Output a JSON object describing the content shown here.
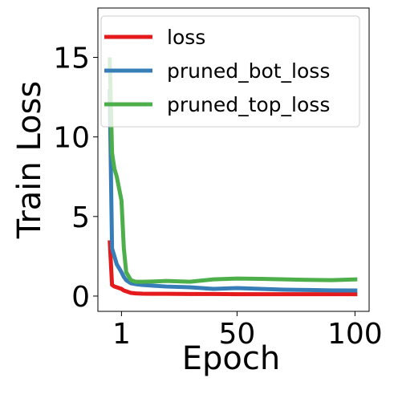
{
  "chart_data": {
    "type": "line",
    "x_label": "Epoch",
    "y_label": "Train Loss",
    "x": [
      -4,
      -3,
      -2,
      -1,
      1,
      2,
      3,
      5,
      7,
      10,
      15,
      20,
      30,
      40,
      50,
      60,
      70,
      80,
      90,
      101
    ],
    "series": [
      {
        "name": "loss",
        "color": "#e41a1c",
        "values": [
          3.5,
          0.7,
          0.6,
          0.55,
          0.45,
          0.35,
          0.3,
          0.2,
          0.17,
          0.15,
          0.14,
          0.14,
          0.13,
          0.13,
          0.12,
          0.12,
          0.12,
          0.12,
          0.12,
          0.12
        ]
      },
      {
        "name": "pruned_bot_loss",
        "color": "#377eb8",
        "values": [
          13,
          3,
          2.5,
          2,
          1.5,
          1.2,
          1.0,
          0.8,
          0.75,
          0.7,
          0.65,
          0.6,
          0.55,
          0.45,
          0.5,
          0.45,
          0.4,
          0.38,
          0.36,
          0.35
        ]
      },
      {
        "name": "pruned_top_loss",
        "color": "#4daf4a",
        "values": [
          15,
          9,
          8,
          7.5,
          6,
          3,
          1.5,
          1.0,
          0.9,
          0.9,
          0.92,
          0.95,
          0.9,
          1.05,
          1.1,
          1.08,
          1.05,
          1.02,
          1.0,
          1.05
        ]
      }
    ],
    "xlim": [
      -9,
      106
    ],
    "ylim": [
      -0.96,
      18.1
    ],
    "xticks": [
      1,
      50,
      100
    ],
    "yticks": [
      0,
      5,
      10,
      15
    ],
    "legend": "upper left",
    "grid": false
  }
}
